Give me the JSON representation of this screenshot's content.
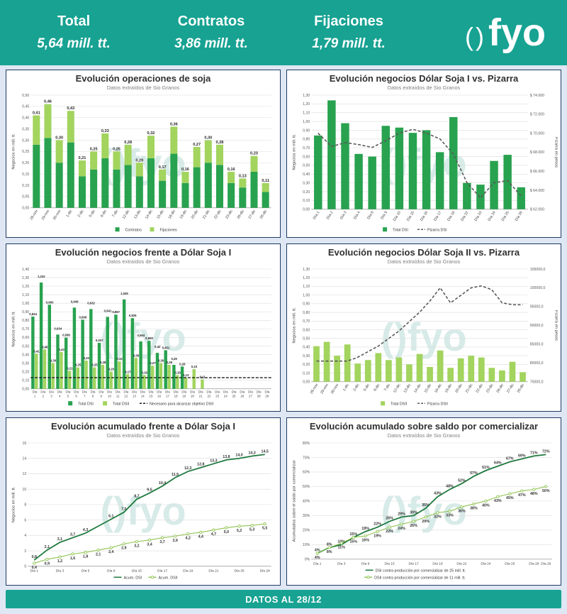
{
  "header": {
    "stats": [
      {
        "label": "Total",
        "value": "5,64 mill. tt."
      },
      {
        "label": "Contratos",
        "value": "3,86 mill. tt."
      },
      {
        "label": "Fijaciones",
        "value": "1,79 mill. tt."
      }
    ],
    "logo_parens": "()",
    "logo_text": "fyo"
  },
  "footer": {
    "text": "DATOS AL 28/12"
  },
  "watermark": "()fyo",
  "colors": {
    "teal": "#17a292",
    "dark_green": "#28a24f",
    "light_green": "#a2d45e",
    "dark_line": "#1f7a3f",
    "light_line": "#8fc350",
    "pizarra_gray": "#595959",
    "watermark": "#b7dcd6",
    "background": "#dee7f3",
    "panel_border": "#1d3b63"
  },
  "chart_data": [
    {
      "type": "bar",
      "title": "Evolución operaciones de soja",
      "subtitle": "Datos extraídos de Sio Granos",
      "ylabel": "Negocios en mill. tt.",
      "xlabel_mode": "rot",
      "categories": [
        "28-nov",
        "29-nov",
        "30-nov",
        "1-dic",
        "2-dic",
        "5-dic",
        "6-dic",
        "7-dic",
        "12-dic",
        "13-dic",
        "14-dic",
        "15-dic",
        "16-dic",
        "19-dic",
        "20-dic",
        "21-dic",
        "22-dic",
        "23-dic",
        "26-dic",
        "27-dic",
        "28-dic"
      ],
      "series": [
        {
          "name": "Contratos",
          "color": "#28a24f",
          "values": [
            0.28,
            0.31,
            0.2,
            0.29,
            0.14,
            0.17,
            0.22,
            0.17,
            0.19,
            0.14,
            0.22,
            0.12,
            0.24,
            0.11,
            0.18,
            0.2,
            0.19,
            0.11,
            0.09,
            0.16,
            0.07
          ]
        },
        {
          "name": "Fijaciones",
          "color": "#a2d45e",
          "values": [
            0.13,
            0.15,
            0.1,
            0.14,
            0.07,
            0.08,
            0.11,
            0.08,
            0.09,
            0.06,
            0.1,
            0.05,
            0.12,
            0.05,
            0.09,
            0.1,
            0.09,
            0.05,
            0.04,
            0.07,
            0.04
          ]
        }
      ],
      "total_labels": [
        "0,41",
        "0,46",
        "0,30",
        "0,43",
        "0,21",
        "0,25",
        "0,33",
        "0,25",
        "0,28",
        "0,20",
        "0,32",
        "0,17",
        "0,36",
        "0,16",
        "0,27",
        "0,30",
        "0,28",
        "0,16",
        "0,13",
        "0,23",
        "0,11"
      ],
      "ylim": [
        0,
        0.5
      ],
      "ytick_step": 0.05,
      "ytick_format": "comma2",
      "mleft": 30,
      "mbottom": 26,
      "legend": [
        {
          "label": "Contratos",
          "color": "#28a24f",
          "type": "box"
        },
        {
          "label": "Fijaciones",
          "color": "#a2d45e",
          "type": "box"
        }
      ]
    },
    {
      "type": "barline",
      "title": "Evolución negocios Dólar Soja I vs. Pizarra",
      "subtitle": "Datos extraídos de Sio Granos",
      "ylabel": "Negocios en mill. tt.",
      "y2label": "Pizarra en pesos",
      "xlabel_mode": "rot",
      "categories": [
        "Día 1",
        "Día 2",
        "Día 3",
        "Día 4",
        "Día 8",
        "Día 9",
        "Día 10",
        "Día 15",
        "Día 16",
        "Día 17",
        "Día 18",
        "Día 22",
        "Día 23",
        "Día 24",
        "Día 25",
        "Día 26"
      ],
      "bars": {
        "name": "Total DSI",
        "color": "#28a24f",
        "values": [
          0.84,
          1.24,
          0.98,
          0.63,
          0.6,
          0.95,
          0.93,
          0.87,
          0.9,
          0.65,
          1.05,
          0.3,
          0.28,
          0.55,
          0.62,
          0.25
        ]
      },
      "line": {
        "name": "Pizarra DSI",
        "color": "#595959",
        "values": [
          70000,
          68600,
          69000,
          68800,
          68500,
          69200,
          70000,
          70400,
          70000,
          69400,
          67800,
          64800,
          63200,
          64800,
          65000,
          63400
        ]
      },
      "ylim": [
        0,
        1.3
      ],
      "ytick_step": 0.1,
      "ytick_format": "comma2",
      "y2lim": [
        62000,
        74000
      ],
      "y2tick_step": 2000,
      "y2format": "pesos",
      "mleft": 30,
      "mbottom": 24,
      "legend": [
        {
          "label": "Total DSI",
          "color": "#28a24f",
          "type": "box"
        },
        {
          "label": "Pizarra DSI",
          "color": "#595959",
          "type": "dashline"
        }
      ]
    },
    {
      "type": "groupbar",
      "title": "Evolución negocios frente a Dólar Soja I",
      "subtitle": "Datos extraídos de Sio Granos",
      "ylabel": "Negocios en mill. tt.",
      "xlabel_mode": "twoline",
      "categories": [
        "Día 1",
        "Día 2",
        "Día 3",
        "Día 4",
        "Día 5",
        "Día 6",
        "Día 7",
        "Día 8",
        "Día 9",
        "Día 10",
        "Día 11",
        "Día 12",
        "Día 13",
        "Día 14",
        "Día 15",
        "Día 16",
        "Día 17",
        "Día 18",
        "Día 19",
        "Día 20",
        "Día 21",
        "Día 22",
        "Día 23",
        "Día 24",
        "Día 25",
        "Día 26",
        "Día 27",
        "Día 28",
        "Día 29"
      ],
      "series": [
        {
          "name": "Total DSI",
          "color": "#28a24f",
          "values": [
            0.844,
            1.242,
            0.983,
            0.634,
            0.598,
            0.949,
            0.808,
            0.932,
            0.537,
            0.841,
            0.867,
            1.045,
            0.826,
            0.554,
            0.56,
            0.42,
            0.451,
            0.28,
            0.26,
            0,
            0,
            0,
            0,
            0,
            0,
            0,
            0,
            0,
            0
          ],
          "labels": [
            "0,844",
            "1,242",
            "0,983",
            "0,634",
            "0,598",
            "0,949",
            "0,808",
            "0,932",
            "0,537",
            "0,841",
            "0,867",
            "1,045",
            "0,826",
            "0,554",
            "0,560",
            "0,42",
            "0,451",
            "0,28",
            "0,26",
            "",
            "",
            "",
            "",
            "",
            "",
            "",
            "",
            "",
            ""
          ]
        },
        {
          "name": "Total DSII",
          "color": "#a2d45e",
          "values": [
            0.41,
            0.46,
            0.3,
            0.43,
            0.21,
            0.25,
            0.33,
            0.25,
            0.28,
            0.2,
            0.32,
            0.17,
            0.36,
            0.16,
            0.27,
            0.3,
            0.28,
            0.16,
            0.13,
            0.23,
            0.11,
            0,
            0,
            0,
            0,
            0,
            0,
            0,
            0
          ],
          "labels": [
            "0,41",
            "0,46",
            "0,30",
            "0,43",
            "0,21",
            "0,25",
            "0,33",
            "0,25",
            "0,28",
            "0,20",
            "0,32",
            "0,17",
            "0,36",
            "0,16",
            "0,27",
            "0,30",
            "0,28",
            "0,16",
            "0,13",
            "0,23",
            "0,11",
            "",
            "",
            "",
            "",
            "",
            "",
            "",
            ""
          ]
        }
      ],
      "target_line": {
        "name": "Necesario para alcanzar objetivo DSII",
        "value": 0.13,
        "color": "#1a1a1a"
      },
      "ylim": [
        0,
        1.4
      ],
      "ytick_step": 0.1,
      "ytick_format": "comma2",
      "mleft": 30,
      "mbottom": 16,
      "legend": [
        {
          "label": "Total DSI",
          "color": "#28a24f",
          "type": "box"
        },
        {
          "label": "Total DSII",
          "color": "#a2d45e",
          "type": "box"
        },
        {
          "label": "Necesario para alcanzar objetivo DSII",
          "color": "#1a1a1a",
          "type": "dashline"
        }
      ]
    },
    {
      "type": "barline",
      "title": "Evolución negocios Dólar Soja II vs. Pizarra",
      "subtitle": "Datos extraídos de Sio Granos",
      "ylabel": "Negocios en mill. tt.",
      "y2label": "Pizarra en pesos",
      "xlabel_mode": "rot",
      "categories": [
        "28-nov",
        "29-nov",
        "30-nov",
        "1-dic",
        "2-dic",
        "5-dic",
        "6-dic",
        "7-dic",
        "12-dic",
        "13-dic",
        "14-dic",
        "15-dic",
        "16-dic",
        "19-dic",
        "20-dic",
        "21-dic",
        "22-dic",
        "23-dic",
        "26-dic",
        "27-dic",
        "28-dic"
      ],
      "bars": {
        "name": "Total DSII",
        "color": "#a2d45e",
        "values": [
          0.41,
          0.46,
          0.3,
          0.43,
          0.21,
          0.25,
          0.33,
          0.25,
          0.28,
          0.2,
          0.32,
          0.17,
          0.36,
          0.16,
          0.27,
          0.3,
          0.28,
          0.16,
          0.13,
          0.23,
          0.11
        ]
      },
      "line": {
        "name": "Pizarra DSII",
        "color": "#595959",
        "values": [
          80500,
          80500,
          80500,
          80500,
          81500,
          83000,
          84500,
          86500,
          88500,
          91000,
          93500,
          96500,
          100000,
          96000,
          98000,
          100000,
          100500,
          99500,
          96000,
          95500,
          95500
        ]
      },
      "ylim": [
        0,
        1.3
      ],
      "ytick_step": 0.1,
      "ytick_format": "comma2",
      "y2lim": [
        75000,
        105000
      ],
      "y2tick_step": 5000,
      "y2format": "plain1",
      "mleft": 30,
      "mbottom": 26,
      "legend": [
        {
          "label": "Total DSII",
          "color": "#a2d45e",
          "type": "box"
        },
        {
          "label": "Pizarra DSII",
          "color": "#595959",
          "type": "dashline"
        }
      ]
    },
    {
      "type": "lines",
      "title": "Evolución acumulado frente a Dólar Soja I",
      "subtitle": "Datos extraídos de Sio Granos",
      "ylabel": "Negocios en mill. tt.",
      "x_ticks": [
        "Día 1",
        "",
        "Día 3",
        "",
        "Día 5",
        "",
        "Día 9",
        "",
        "Día 15",
        "",
        "Día 17",
        "",
        "Día 19",
        "",
        "Día 21",
        "",
        "Día 25",
        "",
        "Día 28"
      ],
      "series": [
        {
          "name": "Acum. DSI",
          "color": "#1f7a3f",
          "marker": false,
          "label_pos": "above",
          "values": [
            0.8,
            2.1,
            3.1,
            3.7,
            4.3,
            5.2,
            6.1,
            7.0,
            8.7,
            9.5,
            10.4,
            11.5,
            12.3,
            12.8,
            13.3,
            13.8,
            14.0,
            14.3,
            14.5
          ],
          "labels": [
            "0,8",
            "2,1",
            "3,1",
            "3,7",
            "4,3",
            "",
            "6,1",
            "7,0",
            "8,7",
            "9,5",
            "10,4",
            "11,5",
            "12,3",
            "12,8",
            "13,3",
            "13,8",
            "14,0",
            "14,3",
            "14,5"
          ]
        },
        {
          "name": "Acum. DSII",
          "color": "#8fc350",
          "marker": true,
          "label_pos": "below",
          "values": [
            0.4,
            0.9,
            1.2,
            1.6,
            1.8,
            2.1,
            2.4,
            2.9,
            3.2,
            3.4,
            3.7,
            3.9,
            4.2,
            4.4,
            4.7,
            5.0,
            5.2,
            5.3,
            5.5
          ],
          "labels": [
            "0,4",
            "0,9",
            "1,2",
            "1,6",
            "1,8",
            "2,1",
            "2,4",
            "2,9",
            "3,2",
            "3,4",
            "3,7",
            "3,9",
            "4,2",
            "4,4",
            "4,7",
            "5,0",
            "5,2",
            "5,3",
            "5,5"
          ]
        }
      ],
      "ylim": [
        0,
        16
      ],
      "ytick_step": 2,
      "ytick_format": "int",
      "mleft": 26,
      "mbottom": 11,
      "legend": [
        {
          "label": "Acum. DSI",
          "color": "#1f7a3f",
          "type": "line"
        },
        {
          "label": "Acum. DSII",
          "color": "#8fc350",
          "type": "line-marker"
        }
      ]
    },
    {
      "type": "lines",
      "title": "Evolución acumulado sobre saldo por comercializar",
      "subtitle": "Datos extraídos de Sio Granos",
      "ylabel": "Acumulados sobre el saldo por comercializar",
      "x_ticks": [
        "Día 1",
        "",
        "Día 3",
        "",
        "Día 9",
        "",
        "Día 15",
        "",
        "Día 17",
        "",
        "Día 19",
        "",
        "Día 22",
        "",
        "Día 24",
        "",
        "Día 25",
        "",
        "Día 28",
        "Día 29"
      ],
      "series": [
        {
          "name": "DSI contra producción por comercializar de 25 mill. tt.",
          "color": "#1f7a3f",
          "marker": false,
          "label_pos": "above",
          "values": [
            4,
            8,
            10,
            15,
            19,
            22,
            26,
            29,
            30,
            35,
            43,
            48,
            52,
            57,
            61,
            64,
            67,
            69,
            71,
            72
          ],
          "labels": [
            "4%",
            "8%",
            "10%",
            "15%",
            "19%",
            "22%",
            "26%",
            "29%",
            "30%",
            "35%",
            "43%",
            "48%",
            "52%",
            "57%",
            "61%",
            "64%",
            "67%",
            "69%",
            "71%",
            "72%"
          ]
        },
        {
          "name": "DSII contra producción por comercializar de 11 mill. tt.",
          "color": "#8fc350",
          "marker": true,
          "label_pos": "below",
          "values": [
            4,
            8,
            11,
            15,
            16,
            19,
            22,
            24,
            26,
            29,
            32,
            33,
            36,
            38,
            40,
            43,
            45,
            47,
            48,
            50
          ],
          "labels": [
            "4%",
            "8%",
            "11%",
            "15%",
            "16%",
            "19%",
            "22%",
            "24%",
            "26%",
            "29%",
            "32%",
            "33%",
            "36%",
            "38%",
            "40%",
            "43%",
            "45%",
            "47%",
            "48%",
            "50%"
          ]
        }
      ],
      "ylim": [
        0,
        80
      ],
      "ytick_step": 10,
      "ytick_format": "pct",
      "mleft": 30,
      "mbottom": 11,
      "legend_rows": 2,
      "legend": [
        {
          "label": "DSI contra producción por comercializar de 25 mill. tt.",
          "color": "#1f7a3f",
          "type": "line"
        },
        {
          "label": "DSII contra producción por comercializar de 11 mill. tt.",
          "color": "#8fc350",
          "type": "line-marker"
        }
      ]
    }
  ]
}
